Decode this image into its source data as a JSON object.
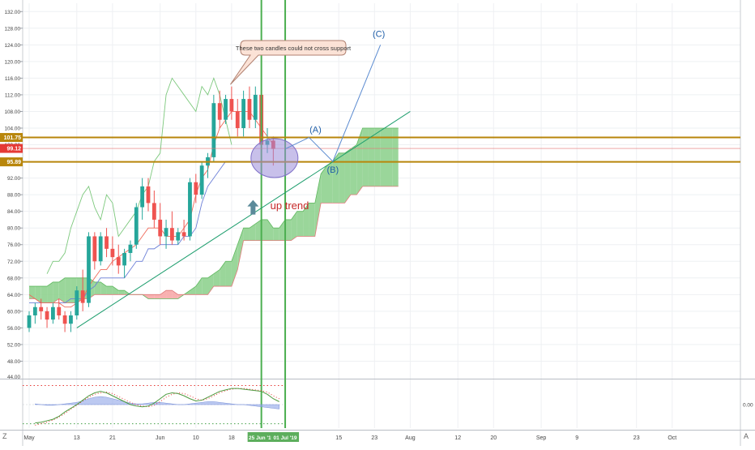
{
  "chart_data": [
    {
      "type": "candlestick",
      "title": "",
      "xlabel": "",
      "ylabel": "",
      "ylim": [
        44,
        134
      ],
      "y_ticks": [
        48,
        52,
        56,
        60,
        64,
        68,
        72,
        76,
        80,
        84,
        88,
        92,
        96,
        100,
        104,
        108,
        112,
        116,
        120,
        124,
        128,
        132
      ],
      "y_tick_labels": [
        "48.00",
        "52.00",
        "56.00",
        "60.00",
        "64.00",
        "68.00",
        "72.00",
        "76.00",
        "80.00",
        "84.00",
        "88.00",
        "92.00",
        "96.00",
        "100.00",
        "104.00",
        "108.00",
        "112.00",
        "116.00",
        "120.00",
        "124.00",
        "128.00",
        "132.00"
      ],
      "y_bottom_label": "44.00",
      "x_axis": [
        {
          "label": "May",
          "pos": 0
        },
        {
          "label": "13",
          "pos": 8
        },
        {
          "label": "21",
          "pos": 14
        },
        {
          "label": "Jun",
          "pos": 22
        },
        {
          "label": "10",
          "pos": 28
        },
        {
          "label": "18",
          "pos": 34
        },
        {
          "label": "25 Jun '19",
          "pos": 39,
          "highlight": true
        },
        {
          "label": "01 Jul '19",
          "pos": 43,
          "highlight": true
        },
        {
          "label": "15",
          "pos": 52
        },
        {
          "label": "23",
          "pos": 58
        },
        {
          "label": "Aug",
          "pos": 64
        },
        {
          "label": "12",
          "pos": 72
        },
        {
          "label": "20",
          "pos": 78
        },
        {
          "label": "Sep",
          "pos": 86
        },
        {
          "label": "9",
          "pos": 92
        },
        {
          "label": "23",
          "pos": 102
        },
        {
          "label": "Oct",
          "pos": 108
        }
      ],
      "candles": [
        [
          56,
          60,
          55,
          59
        ],
        [
          59,
          62,
          57,
          61
        ],
        [
          61,
          63,
          58,
          60
        ],
        [
          60,
          61,
          56,
          58
        ],
        [
          58,
          62,
          57,
          61
        ],
        [
          61,
          63,
          58,
          59
        ],
        [
          59,
          60,
          55,
          57
        ],
        [
          57,
          60,
          55,
          59
        ],
        [
          59,
          66,
          58,
          65
        ],
        [
          65,
          70,
          60,
          62
        ],
        [
          62,
          79,
          61,
          78
        ],
        [
          78,
          79,
          70,
          72
        ],
        [
          72,
          79,
          71,
          78
        ],
        [
          78,
          80,
          73,
          75
        ],
        [
          75,
          78,
          71,
          73
        ],
        [
          73,
          76,
          69,
          71
        ],
        [
          71,
          75,
          68,
          74
        ],
        [
          74,
          77,
          72,
          76
        ],
        [
          76,
          86,
          75,
          85
        ],
        [
          85,
          92,
          82,
          90
        ],
        [
          90,
          92,
          84,
          86
        ],
        [
          86,
          89,
          80,
          82
        ],
        [
          82,
          86,
          76,
          78
        ],
        [
          78,
          82,
          75,
          80
        ],
        [
          80,
          84,
          76,
          77
        ],
        [
          77,
          80,
          76,
          79
        ],
        [
          79,
          82,
          77,
          78
        ],
        [
          78,
          92,
          77,
          91
        ],
        [
          91,
          93,
          86,
          88
        ],
        [
          88,
          96,
          87,
          95
        ],
        [
          95,
          98,
          92,
          97
        ],
        [
          97,
          112,
          96,
          110
        ],
        [
          110,
          113,
          104,
          106
        ],
        [
          106,
          112,
          105,
          111
        ],
        [
          111,
          114,
          106,
          108
        ],
        [
          108,
          111,
          102,
          104
        ],
        [
          104,
          113,
          102,
          111
        ],
        [
          111,
          114,
          104,
          106
        ],
        [
          106,
          114,
          104,
          112
        ],
        [
          112,
          114,
          96,
          100
        ],
        [
          100,
          104,
          98,
          101
        ],
        [
          101,
          102,
          95,
          99
        ]
      ],
      "kijun": [
        62,
        62,
        62,
        62,
        62,
        62,
        62,
        63,
        63,
        63,
        65,
        66,
        68,
        68,
        68,
        68,
        68,
        70,
        72,
        72,
        75,
        75,
        76,
        76,
        76,
        76,
        78,
        78,
        80,
        86,
        90,
        92,
        94,
        96,
        96,
        96,
        96,
        96,
        96,
        96,
        96,
        96
      ],
      "tenkan": [
        64,
        63,
        62,
        62,
        62,
        62,
        61,
        61,
        62,
        63,
        66,
        68,
        70,
        70,
        72,
        73,
        74,
        75,
        76,
        78,
        80,
        80,
        80,
        78,
        78,
        78,
        80,
        82,
        88,
        92,
        94,
        100,
        104,
        106,
        108,
        108,
        108,
        108,
        106,
        104,
        102,
        100
      ],
      "chikou": [
        69,
        72,
        72,
        74,
        80,
        84,
        88,
        90,
        85,
        82,
        88,
        86,
        78,
        80,
        82,
        84,
        88,
        90,
        96,
        98,
        112,
        116,
        114,
        112,
        110,
        108,
        114,
        112,
        116,
        112,
        106,
        100
      ],
      "chikou_start": 3,
      "cloud": [
        [
          66,
          63
        ],
        [
          66,
          63
        ],
        [
          66,
          62
        ],
        [
          66,
          62
        ],
        [
          67,
          62
        ],
        [
          67,
          63
        ],
        [
          68,
          62
        ],
        [
          68,
          62
        ],
        [
          68,
          62
        ],
        [
          68,
          63
        ],
        [
          68,
          63
        ],
        [
          67,
          64
        ],
        [
          67,
          64
        ],
        [
          66,
          64
        ],
        [
          66,
          64
        ],
        [
          65,
          64
        ],
        [
          65,
          64
        ],
        [
          64,
          64
        ],
        [
          64,
          64
        ],
        [
          64,
          64
        ],
        [
          63,
          64
        ],
        [
          63,
          64
        ],
        [
          63,
          64
        ],
        [
          63,
          65
        ],
        [
          63,
          65
        ],
        [
          63,
          64
        ],
        [
          64,
          64
        ],
        [
          65,
          64
        ],
        [
          66,
          64
        ],
        [
          68,
          64
        ],
        [
          68,
          64
        ],
        [
          69,
          66
        ],
        [
          70,
          66
        ],
        [
          72,
          66
        ],
        [
          72,
          66
        ],
        [
          76,
          70
        ],
        [
          80,
          77
        ],
        [
          80,
          77
        ],
        [
          81,
          77
        ],
        [
          82,
          77
        ],
        [
          82,
          77
        ],
        [
          80,
          77
        ],
        [
          80,
          77
        ],
        [
          82,
          77
        ],
        [
          82,
          77
        ],
        [
          84,
          78
        ],
        [
          84,
          78
        ],
        [
          86,
          78
        ],
        [
          86,
          78
        ],
        [
          93,
          86
        ],
        [
          95,
          86
        ],
        [
          96,
          86
        ],
        [
          98,
          86
        ],
        [
          98,
          86
        ],
        [
          99,
          88
        ],
        [
          100,
          88
        ],
        [
          104,
          90
        ],
        [
          104,
          90
        ],
        [
          104,
          90
        ],
        [
          104,
          90
        ],
        [
          104,
          90
        ],
        [
          104,
          90
        ],
        [
          104,
          90
        ]
      ],
      "horizontal_levels": [
        {
          "value": 101.75,
          "label": "101.75"
        },
        {
          "value": 95.89,
          "label": "95.89"
        }
      ],
      "last_price": {
        "value": 99.12,
        "label": "99.12"
      },
      "trendline": {
        "from": {
          "x": 8,
          "y": 56
        },
        "to": {
          "x": 64,
          "y": 108
        }
      },
      "elliott_path": [
        {
          "x": 43,
          "y": 99,
          "label": ""
        },
        {
          "x": 47,
          "y": 101.75,
          "label": "(A)"
        },
        {
          "x": 51,
          "y": 96,
          "label": "(B)"
        },
        {
          "x": 59,
          "y": 124,
          "label": "(C)"
        }
      ],
      "vertical_markers": [
        39,
        43
      ],
      "annotations": {
        "callout": "These two candles could not cross support",
        "trend_label": "up trend"
      },
      "colors": {
        "up": "#26a69a",
        "down": "#ef5350",
        "level": "#b8860b",
        "trend": "#1e9e6e",
        "vline": "#4caf50",
        "cloud_bull": "#8fd18f",
        "cloud_bear": "#f7a8a8",
        "kijun": "#6b7fd7",
        "tenkan": "#ef6a5a",
        "chikou": "#7cc87c",
        "ellipse": "#9b8cd8",
        "text_red": "#c62828",
        "text_blue": "#1f5ea8",
        "arrow": "#5b8a9a"
      }
    },
    {
      "type": "line",
      "title": "",
      "y_label": "0.00",
      "line": [
        -2.5,
        -2.4,
        -2.2,
        -2.0,
        -1.6,
        -1.0,
        -0.5,
        0.0,
        0.6,
        1.2,
        1.6,
        1.8,
        1.6,
        1.2,
        0.8,
        0.4,
        0.0,
        -0.2,
        -0.3,
        -0.2,
        0.2,
        0.8,
        1.4,
        1.6,
        1.5,
        1.2,
        0.8,
        0.5,
        0.6,
        1.0,
        1.4,
        1.8,
        2.0,
        2.2,
        2.2,
        2.1,
        2.0,
        1.9,
        1.8,
        1.4,
        0.8,
        0.4
      ],
      "signal": [
        -2.8,
        -2.6,
        -2.4,
        -2.1,
        -1.7,
        -1.2,
        -0.6,
        -0.1,
        0.5,
        1.0,
        1.4,
        1.6,
        1.7,
        1.5,
        1.1,
        0.7,
        0.3,
        0.0,
        -0.2,
        -0.3,
        -0.1,
        0.4,
        1.0,
        1.4,
        1.6,
        1.5,
        1.2,
        0.8,
        0.6,
        0.8,
        1.2,
        1.6,
        1.9,
        2.1,
        2.2,
        2.2,
        2.1,
        2.0,
        1.9,
        1.7,
        1.2,
        0.8
      ],
      "histogram": [
        0.1,
        0.0,
        -0.1,
        -0.1,
        0.0,
        0.1,
        0.2,
        0.3,
        0.5,
        0.8,
        1.0,
        1.1,
        1.0,
        0.8,
        0.6,
        0.4,
        0.2,
        0.1,
        0.1,
        0.2,
        0.3,
        0.3,
        0.2,
        0.1,
        0.0,
        0.0,
        0.1,
        0.2,
        0.3,
        0.4,
        0.4,
        0.3,
        0.2,
        0.1,
        0.0,
        0.0,
        -0.1,
        -0.2,
        -0.3,
        -0.4,
        -0.5,
        -0.6
      ],
      "upper_band": 2.6,
      "lower_band": -2.6,
      "ylim": [
        -3.2,
        3.2
      ]
    }
  ]
}
